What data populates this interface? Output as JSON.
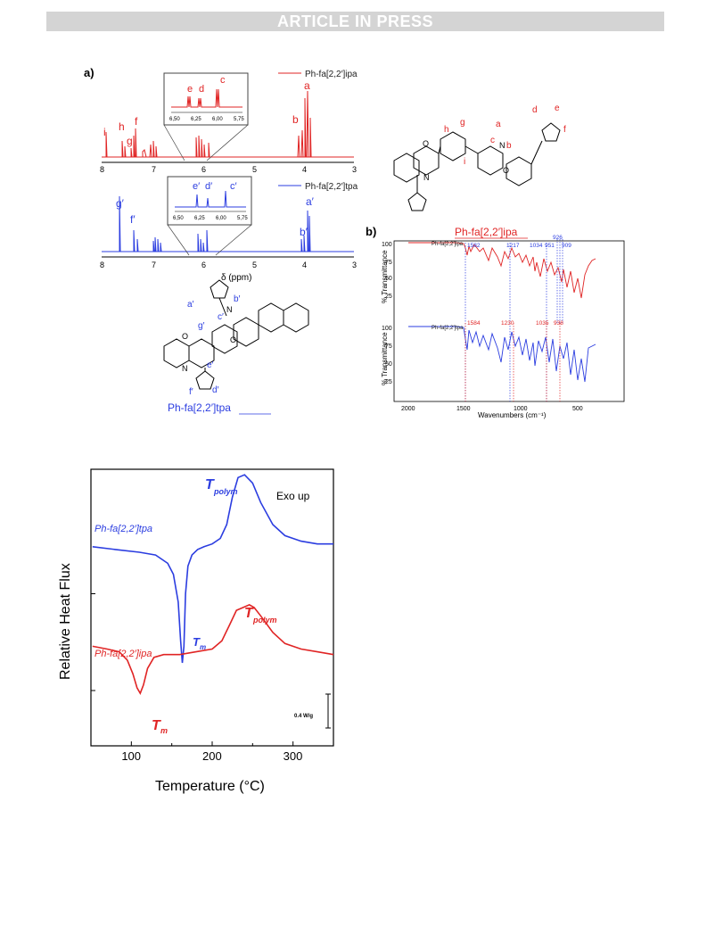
{
  "header": {
    "banner": "ARTICLE IN PRESS"
  },
  "figure_top": {
    "panel_a_label": "a)",
    "panel_b_label": "b)",
    "nmr": {
      "xlabel": "δ (ppm)",
      "top_legend": "Ph-fa[2,2′]ipa",
      "bottom_legend": "Ph-fa[2,2′]tpa",
      "ticks": [
        "8",
        "7",
        "6",
        "5",
        "4",
        "3"
      ],
      "top_peak_labels": [
        "a",
        "b",
        "f",
        "h",
        "g",
        "i"
      ],
      "bottom_peak_labels": [
        "g′",
        "f′",
        "a′",
        "b′"
      ],
      "inset_top_labels": [
        "e",
        "d",
        "c"
      ],
      "inset_bottom_labels": [
        "e′",
        "d′",
        "c′"
      ],
      "inset_ticks": [
        "6,50",
        "6,25",
        "6,00",
        "5,75"
      ]
    },
    "structures": {
      "ipa_name": "Ph-fa[2,2′]ipa",
      "tpa_name": "Ph-fa[2,2′]tpa",
      "ipa_atoms": [
        "h",
        "g",
        "i",
        "a",
        "c",
        "b",
        "d",
        "e",
        "f"
      ],
      "tpa_atoms": [
        "a′",
        "b′",
        "g′",
        "c′",
        "e′",
        "f′",
        "d′"
      ],
      "atoms_O": "O",
      "atoms_N": "N"
    },
    "ftir": {
      "xlabel": "Wavenumbers (cm⁻¹)",
      "ylabel": "% Transmittance",
      "ticks_x": [
        "2000",
        "1500",
        "1000",
        "500"
      ],
      "ticks_y": [
        "100",
        "75",
        "50",
        "25"
      ],
      "legend_top": "Ph-fa[2,2′]ipa",
      "legend_bottom": "Ph-fa[2,2′]tpa",
      "top_annotations": [
        "1582",
        "1217",
        "1034",
        "951",
        "926",
        "909"
      ],
      "bottom_annotations": [
        "1584",
        "1230",
        "1035",
        "938"
      ]
    }
  },
  "chart_data": {
    "type": "line",
    "xlabel": "Temperature (°C)",
    "ylabel": "Relative Heat Flux",
    "xlim": [
      50,
      350
    ],
    "x_ticks": [
      "100",
      "200",
      "300"
    ],
    "annotation_exo": "Exo up",
    "scale_bar_label": "0.4 W/g",
    "colors": {
      "tpa": "#2b3de0",
      "ipa": "#e02424"
    },
    "series": [
      {
        "name": "Ph-fa[2,2′]tpa",
        "color": "#2b3de0",
        "Tm_label": "T",
        "Tm_sub": "m",
        "Tpolym_label": "T",
        "Tpolym_sub": "polym",
        "x": [
          52,
          80,
          110,
          130,
          145,
          152,
          158,
          161,
          163,
          165,
          167,
          170,
          175,
          182,
          190,
          200,
          210,
          218,
          225,
          232,
          240,
          250,
          260,
          275,
          290,
          310,
          330,
          350
        ],
        "y": [
          0.72,
          0.71,
          0.7,
          0.69,
          0.66,
          0.62,
          0.52,
          0.38,
          0.3,
          0.36,
          0.55,
          0.65,
          0.69,
          0.71,
          0.72,
          0.73,
          0.75,
          0.8,
          0.9,
          0.97,
          0.98,
          0.95,
          0.88,
          0.8,
          0.76,
          0.74,
          0.73,
          0.73
        ]
      },
      {
        "name": "Ph-fa[2,2′]ipa",
        "color": "#e02424",
        "Tm_label": "T",
        "Tm_sub": "m",
        "Tpolym_label": "T",
        "Tpolym_sub": "polym",
        "x": [
          52,
          70,
          85,
          95,
          102,
          107,
          111,
          115,
          120,
          128,
          140,
          160,
          180,
          200,
          212,
          222,
          230,
          238,
          246,
          252,
          260,
          275,
          290,
          310,
          330,
          350
        ],
        "y": [
          0.36,
          0.35,
          0.34,
          0.31,
          0.26,
          0.21,
          0.19,
          0.22,
          0.28,
          0.32,
          0.33,
          0.33,
          0.34,
          0.35,
          0.38,
          0.44,
          0.49,
          0.5,
          0.51,
          0.5,
          0.47,
          0.41,
          0.37,
          0.35,
          0.34,
          0.33
        ]
      }
    ]
  }
}
